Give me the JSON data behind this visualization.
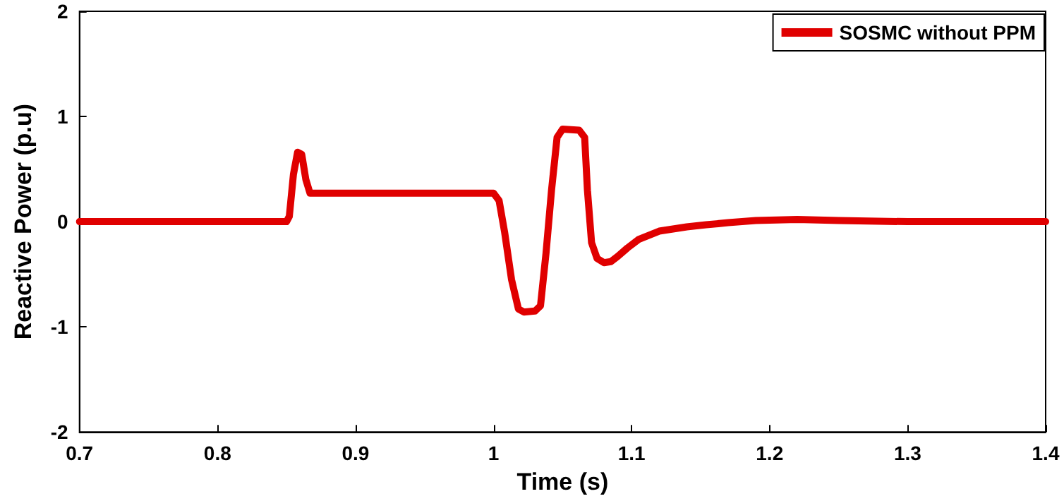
{
  "chart_data": {
    "type": "line",
    "xlabel": "Time (s)",
    "ylabel": "Reactive Power (p.u)",
    "xlim": [
      0.7,
      1.4
    ],
    "xticks": [
      0.7,
      0.8,
      0.9,
      1,
      1.1,
      1.2,
      1.3,
      1.4
    ],
    "ylim": [
      -2,
      2
    ],
    "yticks": [
      -2,
      -1,
      0,
      1,
      2
    ],
    "grid": false,
    "legend": "top right",
    "marker": "none",
    "line_style": "solid",
    "series": [
      {
        "name": "SOSMC without PPM",
        "color": "#e00000",
        "x": [
          0.7,
          0.85,
          0.852,
          0.855,
          0.858,
          0.861,
          0.864,
          0.867,
          0.875,
          0.95,
          1.0,
          1.004,
          1.008,
          1.013,
          1.018,
          1.022,
          1.03,
          1.034,
          1.038,
          1.042,
          1.046,
          1.05,
          1.062,
          1.066,
          1.068,
          1.071,
          1.075,
          1.08,
          1.085,
          1.09,
          1.097,
          1.105,
          1.12,
          1.14,
          1.154,
          1.17,
          1.19,
          1.22,
          1.25,
          1.3,
          1.4
        ],
        "values": [
          0,
          0,
          0.05,
          0.45,
          0.66,
          0.64,
          0.4,
          0.27,
          0.27,
          0.27,
          0.27,
          0.2,
          -0.1,
          -0.55,
          -0.83,
          -0.86,
          -0.85,
          -0.8,
          -0.3,
          0.3,
          0.8,
          0.88,
          0.87,
          0.8,
          0.3,
          -0.2,
          -0.35,
          -0.39,
          -0.38,
          -0.33,
          -0.25,
          -0.17,
          -0.09,
          -0.05,
          -0.03,
          -0.01,
          0.01,
          0.02,
          0.01,
          0,
          0
        ]
      }
    ]
  }
}
